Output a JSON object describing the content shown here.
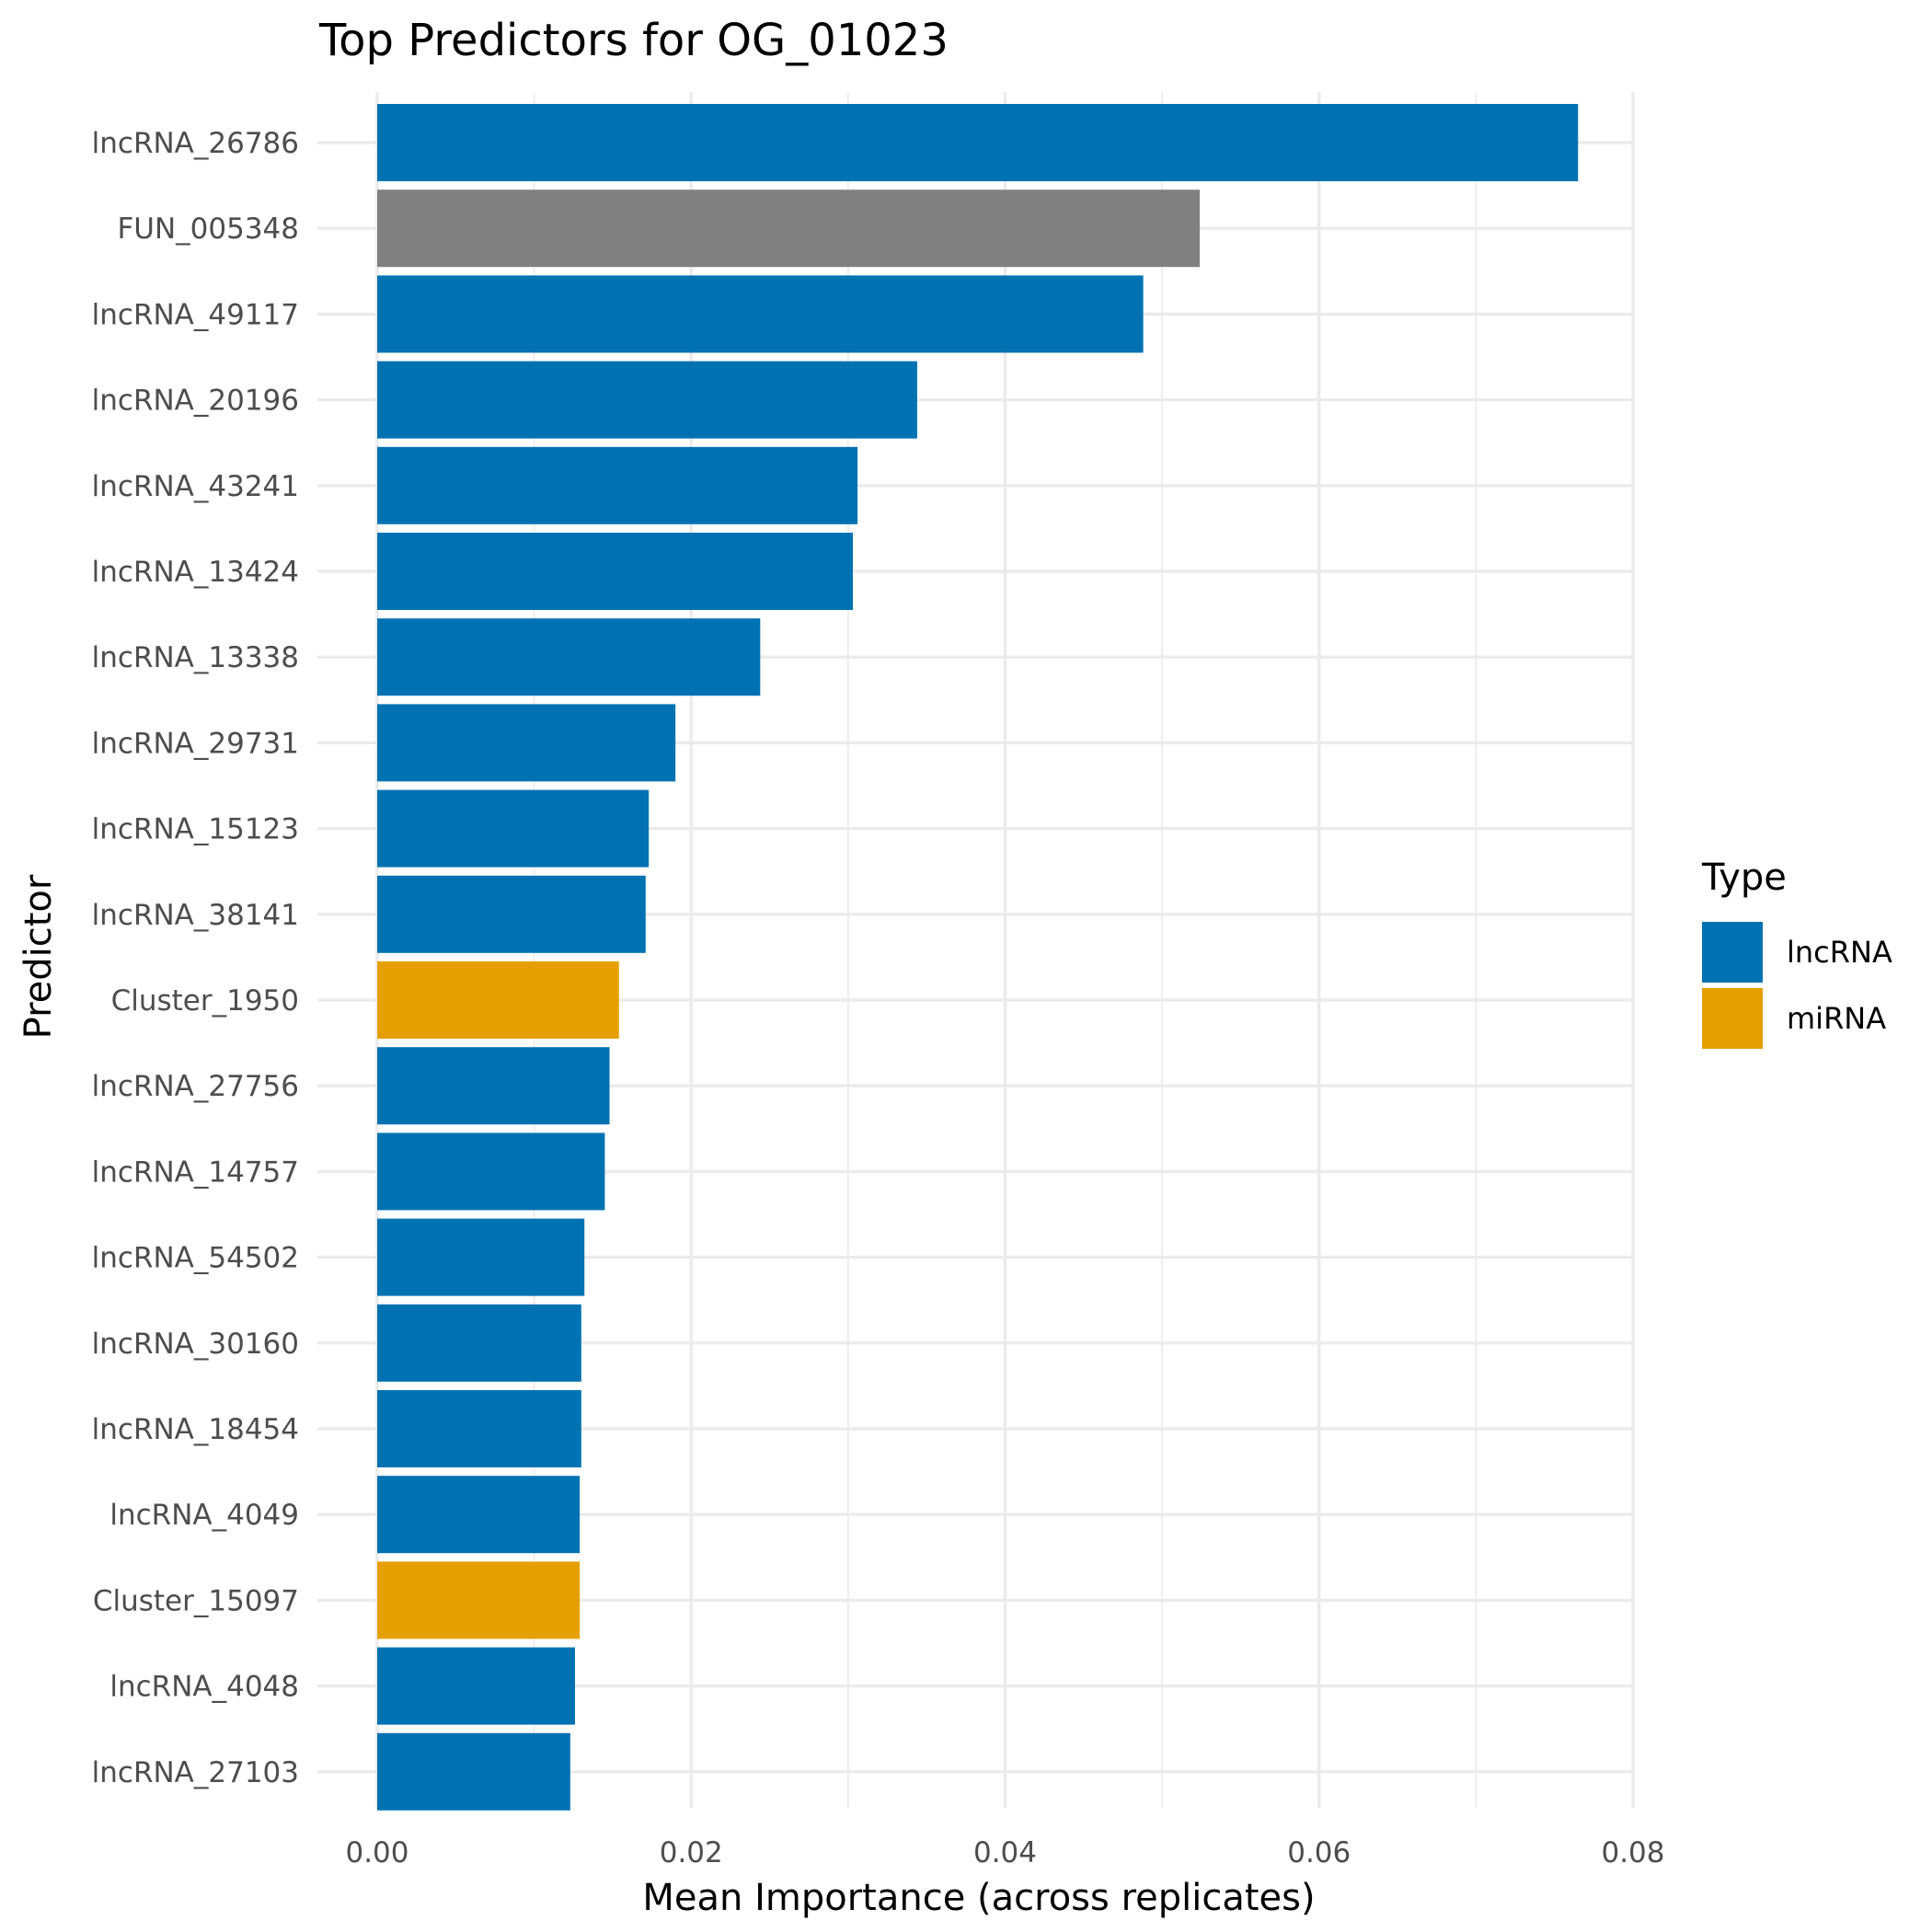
{
  "chart_data": {
    "type": "bar",
    "orientation": "horizontal",
    "title": "Top Predictors for OG_01023",
    "xlabel": "Mean Importance (across replicates)",
    "ylabel": "Predictor",
    "xlim": [
      0,
      0.08
    ],
    "xticks": [
      "0.00",
      "0.02",
      "0.04",
      "0.06",
      "0.08"
    ],
    "grid": true,
    "legend": {
      "title": "Type",
      "placement": "right",
      "entries": [
        {
          "label": "lncRNA",
          "color": "#0072B2"
        },
        {
          "label": "miRNA",
          "color": "#E69F00"
        }
      ]
    },
    "colors": {
      "lncRNA": "#0072B2",
      "miRNA": "#E69F00",
      "other": "#808080"
    },
    "categories": [
      "lncRNA_26786",
      "FUN_005348",
      "lncRNA_49117",
      "lncRNA_20196",
      "lncRNA_43241",
      "lncRNA_13424",
      "lncRNA_13338",
      "lncRNA_29731",
      "lncRNA_15123",
      "lncRNA_38141",
      "Cluster_1950",
      "lncRNA_27756",
      "lncRNA_14757",
      "lncRNA_54502",
      "lncRNA_30160",
      "lncRNA_18454",
      "lncRNA_4049",
      "Cluster_15097",
      "lncRNA_4048",
      "lncRNA_27103"
    ],
    "values": [
      0.0765,
      0.0524,
      0.0488,
      0.0344,
      0.0306,
      0.0303,
      0.0244,
      0.019,
      0.0173,
      0.0171,
      0.0154,
      0.0148,
      0.0145,
      0.0132,
      0.013,
      0.013,
      0.0129,
      0.0129,
      0.0126,
      0.0123
    ],
    "types": [
      "lncRNA",
      "other",
      "lncRNA",
      "lncRNA",
      "lncRNA",
      "lncRNA",
      "lncRNA",
      "lncRNA",
      "lncRNA",
      "lncRNA",
      "miRNA",
      "lncRNA",
      "lncRNA",
      "lncRNA",
      "lncRNA",
      "lncRNA",
      "lncRNA",
      "miRNA",
      "lncRNA",
      "lncRNA"
    ]
  }
}
